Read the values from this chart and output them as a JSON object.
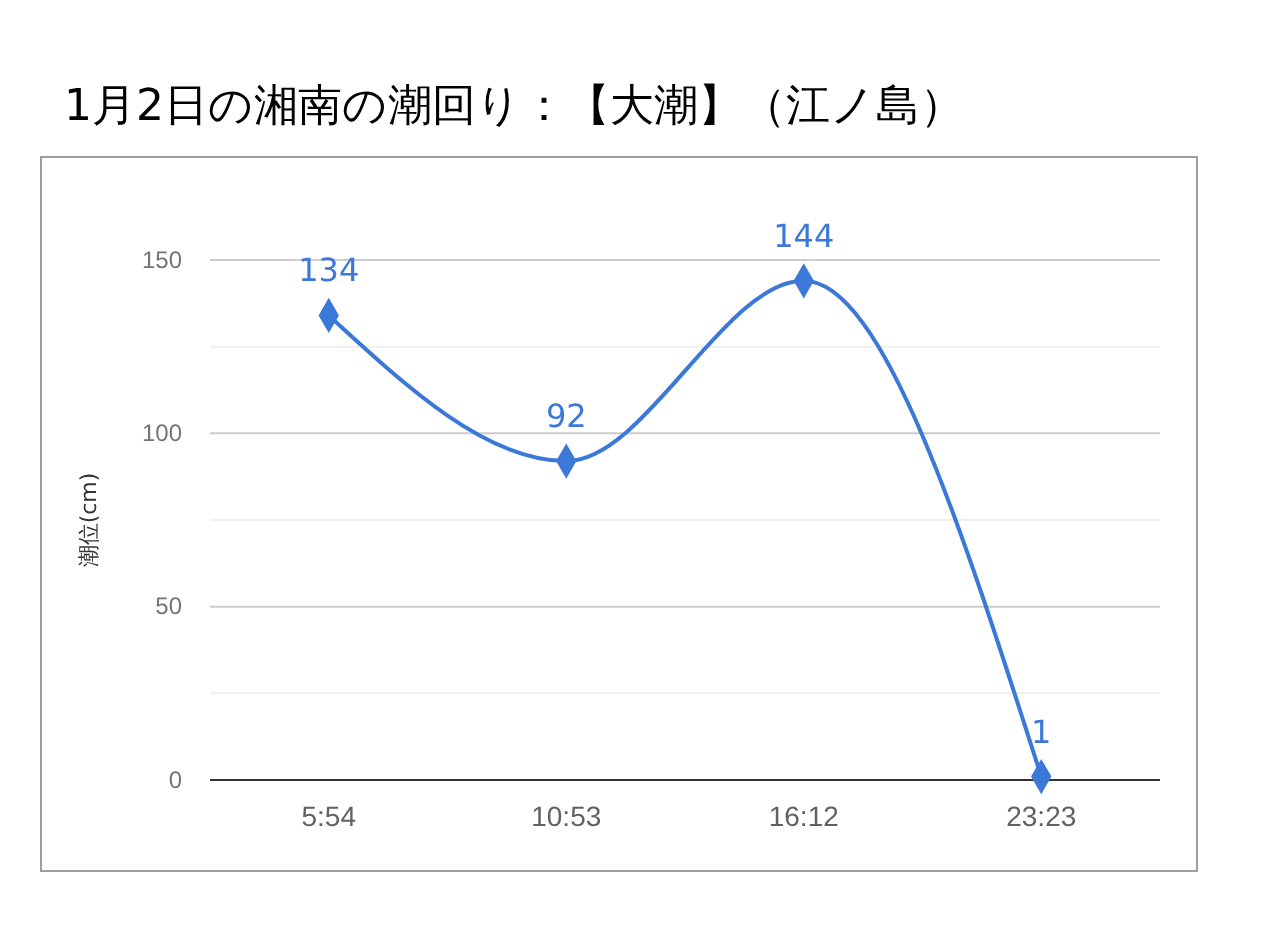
{
  "chart_data": {
    "type": "line",
    "title": "1月2日の湘南の潮回り：【大潮】（江ノ島）",
    "ylabel": "潮位(cm)",
    "categories": [
      "5:54",
      "10:53",
      "16:12",
      "23:23"
    ],
    "series": [
      {
        "color": "#3c78d8",
        "values": [
          134,
          92,
          144,
          1
        ]
      }
    ],
    "ylim": [
      0,
      150
    ],
    "yticks": [
      0,
      {
        "value": 25,
        "label": null
      },
      50,
      {
        "value": 75,
        "label": null
      },
      100,
      {
        "value": 125,
        "label": null
      },
      150
    ],
    "grid": true,
    "marker": "diamond",
    "line_style": "solid",
    "data_labels": true
  }
}
